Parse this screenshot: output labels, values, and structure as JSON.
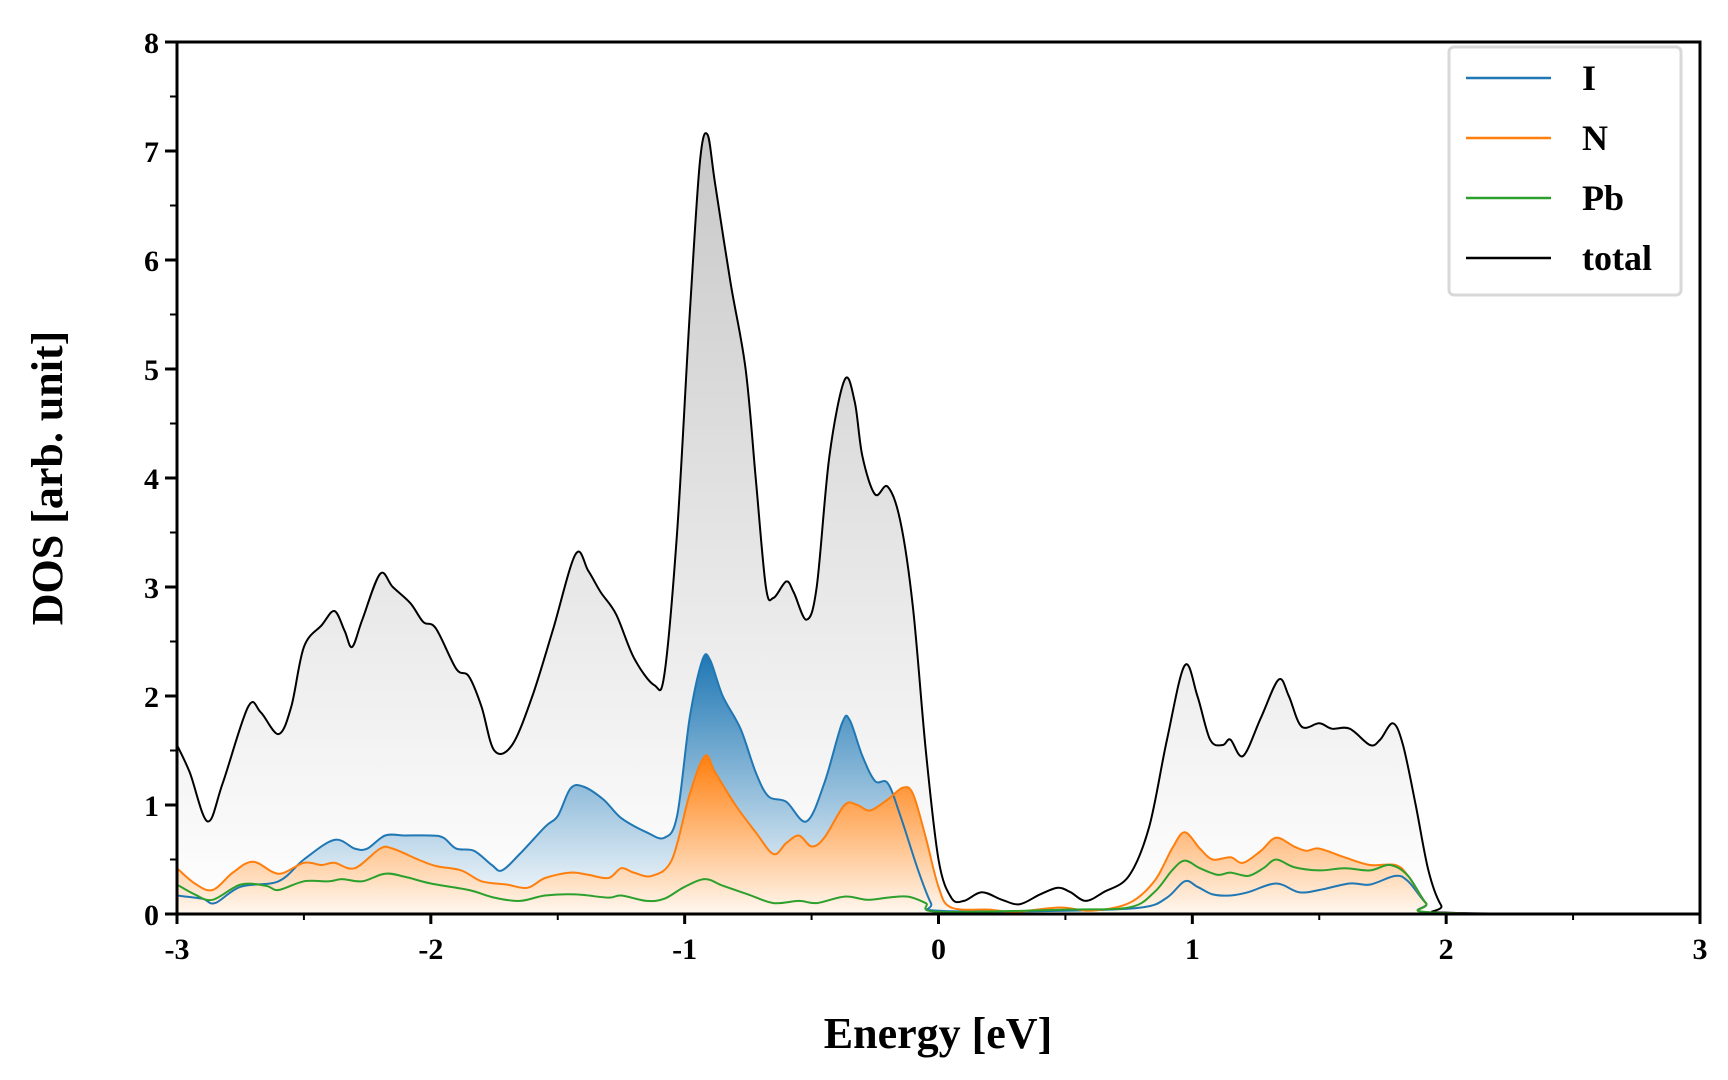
{
  "chart_data": {
    "type": "area",
    "title": "",
    "xlabel": "Energy [eV]",
    "ylabel": "DOS [arb. unit]",
    "xlim": [
      -3,
      3
    ],
    "ylim": [
      0,
      8
    ],
    "xticks": [
      "-3",
      "-2",
      "-1",
      "0",
      "1",
      "2",
      "3"
    ],
    "yticks": [
      "0",
      "1",
      "2",
      "3",
      "4",
      "5",
      "6",
      "7",
      "8"
    ],
    "grid": false,
    "legend_position": "top-right",
    "series": [
      {
        "name": "I",
        "color": "#1f77b4",
        "filled": true,
        "points": [
          [
            -3,
            0.17
          ],
          [
            -2.9,
            0.14
          ],
          [
            -2.85,
            0.1
          ],
          [
            -2.75,
            0.25
          ],
          [
            -2.6,
            0.3
          ],
          [
            -2.5,
            0.5
          ],
          [
            -2.38,
            0.68
          ],
          [
            -2.3,
            0.6
          ],
          [
            -2.25,
            0.6
          ],
          [
            -2.18,
            0.72
          ],
          [
            -2.1,
            0.72
          ],
          [
            -2,
            0.72
          ],
          [
            -1.95,
            0.7
          ],
          [
            -1.9,
            0.6
          ],
          [
            -1.83,
            0.58
          ],
          [
            -1.76,
            0.45
          ],
          [
            -1.72,
            0.4
          ],
          [
            -1.65,
            0.55
          ],
          [
            -1.55,
            0.8
          ],
          [
            -1.5,
            0.9
          ],
          [
            -1.45,
            1.15
          ],
          [
            -1.4,
            1.17
          ],
          [
            -1.32,
            1.05
          ],
          [
            -1.25,
            0.88
          ],
          [
            -1.15,
            0.75
          ],
          [
            -1.08,
            0.7
          ],
          [
            -1.03,
            0.9
          ],
          [
            -0.98,
            1.8
          ],
          [
            -0.93,
            2.33
          ],
          [
            -0.9,
            2.33
          ],
          [
            -0.85,
            2.0
          ],
          [
            -0.78,
            1.7
          ],
          [
            -0.72,
            1.3
          ],
          [
            -0.67,
            1.08
          ],
          [
            -0.6,
            1.03
          ],
          [
            -0.52,
            0.85
          ],
          [
            -0.45,
            1.2
          ],
          [
            -0.38,
            1.75
          ],
          [
            -0.35,
            1.78
          ],
          [
            -0.3,
            1.45
          ],
          [
            -0.25,
            1.22
          ],
          [
            -0.2,
            1.2
          ],
          [
            -0.15,
            0.9
          ],
          [
            -0.08,
            0.4
          ],
          [
            -0.03,
            0.1
          ],
          [
            0,
            0.03
          ],
          [
            0.5,
            0.03
          ],
          [
            0.8,
            0.06
          ],
          [
            0.9,
            0.15
          ],
          [
            0.97,
            0.3
          ],
          [
            1.02,
            0.25
          ],
          [
            1.08,
            0.18
          ],
          [
            1.15,
            0.17
          ],
          [
            1.22,
            0.2
          ],
          [
            1.33,
            0.28
          ],
          [
            1.42,
            0.2
          ],
          [
            1.5,
            0.22
          ],
          [
            1.62,
            0.28
          ],
          [
            1.7,
            0.27
          ],
          [
            1.8,
            0.35
          ],
          [
            1.85,
            0.3
          ],
          [
            1.92,
            0.1
          ],
          [
            1.98,
            0.01
          ],
          [
            3,
            0
          ]
        ]
      },
      {
        "name": "N",
        "color": "#ff7f0e",
        "filled": true,
        "points": [
          [
            -3,
            0.42
          ],
          [
            -2.93,
            0.28
          ],
          [
            -2.86,
            0.22
          ],
          [
            -2.78,
            0.38
          ],
          [
            -2.7,
            0.48
          ],
          [
            -2.6,
            0.37
          ],
          [
            -2.5,
            0.47
          ],
          [
            -2.43,
            0.45
          ],
          [
            -2.38,
            0.47
          ],
          [
            -2.3,
            0.42
          ],
          [
            -2.2,
            0.6
          ],
          [
            -2.15,
            0.6
          ],
          [
            -2.05,
            0.5
          ],
          [
            -1.98,
            0.44
          ],
          [
            -1.88,
            0.4
          ],
          [
            -1.8,
            0.3
          ],
          [
            -1.7,
            0.27
          ],
          [
            -1.62,
            0.24
          ],
          [
            -1.55,
            0.33
          ],
          [
            -1.45,
            0.38
          ],
          [
            -1.38,
            0.36
          ],
          [
            -1.3,
            0.33
          ],
          [
            -1.25,
            0.42
          ],
          [
            -1.2,
            0.38
          ],
          [
            -1.13,
            0.35
          ],
          [
            -1.05,
            0.5
          ],
          [
            -0.98,
            1.1
          ],
          [
            -0.92,
            1.45
          ],
          [
            -0.88,
            1.3
          ],
          [
            -0.8,
            1.0
          ],
          [
            -0.72,
            0.75
          ],
          [
            -0.65,
            0.55
          ],
          [
            -0.6,
            0.65
          ],
          [
            -0.55,
            0.72
          ],
          [
            -0.5,
            0.62
          ],
          [
            -0.45,
            0.7
          ],
          [
            -0.37,
            1.0
          ],
          [
            -0.32,
            1.0
          ],
          [
            -0.27,
            0.95
          ],
          [
            -0.2,
            1.05
          ],
          [
            -0.14,
            1.16
          ],
          [
            -0.1,
            1.1
          ],
          [
            -0.05,
            0.7
          ],
          [
            0,
            0.25
          ],
          [
            0.05,
            0.06
          ],
          [
            0.2,
            0.04
          ],
          [
            0.3,
            0.02
          ],
          [
            0.48,
            0.06
          ],
          [
            0.6,
            0.03
          ],
          [
            0.75,
            0.1
          ],
          [
            0.85,
            0.3
          ],
          [
            0.92,
            0.6
          ],
          [
            0.97,
            0.75
          ],
          [
            1.03,
            0.6
          ],
          [
            1.08,
            0.5
          ],
          [
            1.15,
            0.52
          ],
          [
            1.2,
            0.47
          ],
          [
            1.27,
            0.58
          ],
          [
            1.33,
            0.7
          ],
          [
            1.4,
            0.62
          ],
          [
            1.45,
            0.58
          ],
          [
            1.5,
            0.6
          ],
          [
            1.6,
            0.52
          ],
          [
            1.7,
            0.45
          ],
          [
            1.8,
            0.45
          ],
          [
            1.85,
            0.35
          ],
          [
            1.92,
            0.1
          ],
          [
            1.98,
            0.01
          ],
          [
            3,
            0
          ]
        ]
      },
      {
        "name": "Pb",
        "color": "#2ca02c",
        "filled": false,
        "points": [
          [
            -3,
            0.27
          ],
          [
            -2.93,
            0.18
          ],
          [
            -2.86,
            0.13
          ],
          [
            -2.75,
            0.27
          ],
          [
            -2.65,
            0.26
          ],
          [
            -2.6,
            0.22
          ],
          [
            -2.5,
            0.3
          ],
          [
            -2.4,
            0.3
          ],
          [
            -2.35,
            0.32
          ],
          [
            -2.27,
            0.3
          ],
          [
            -2.18,
            0.37
          ],
          [
            -2.1,
            0.34
          ],
          [
            -2,
            0.28
          ],
          [
            -1.85,
            0.22
          ],
          [
            -1.75,
            0.15
          ],
          [
            -1.65,
            0.12
          ],
          [
            -1.55,
            0.17
          ],
          [
            -1.43,
            0.18
          ],
          [
            -1.3,
            0.15
          ],
          [
            -1.25,
            0.17
          ],
          [
            -1.15,
            0.12
          ],
          [
            -1.08,
            0.14
          ],
          [
            -1.0,
            0.25
          ],
          [
            -0.92,
            0.32
          ],
          [
            -0.85,
            0.26
          ],
          [
            -0.75,
            0.18
          ],
          [
            -0.65,
            0.1
          ],
          [
            -0.55,
            0.12
          ],
          [
            -0.48,
            0.1
          ],
          [
            -0.37,
            0.16
          ],
          [
            -0.28,
            0.13
          ],
          [
            -0.2,
            0.15
          ],
          [
            -0.12,
            0.16
          ],
          [
            -0.05,
            0.1
          ],
          [
            0,
            0.02
          ],
          [
            0.5,
            0.04
          ],
          [
            0.75,
            0.06
          ],
          [
            0.85,
            0.2
          ],
          [
            0.92,
            0.4
          ],
          [
            0.97,
            0.49
          ],
          [
            1.03,
            0.42
          ],
          [
            1.1,
            0.36
          ],
          [
            1.15,
            0.38
          ],
          [
            1.22,
            0.35
          ],
          [
            1.28,
            0.42
          ],
          [
            1.33,
            0.5
          ],
          [
            1.4,
            0.43
          ],
          [
            1.5,
            0.4
          ],
          [
            1.6,
            0.42
          ],
          [
            1.7,
            0.4
          ],
          [
            1.78,
            0.45
          ],
          [
            1.85,
            0.35
          ],
          [
            1.92,
            0.1
          ],
          [
            1.98,
            0.01
          ],
          [
            3,
            0
          ]
        ]
      },
      {
        "name": "total",
        "color": "#000000",
        "filled": true,
        "points": [
          [
            -3,
            1.55
          ],
          [
            -2.95,
            1.3
          ],
          [
            -2.88,
            0.85
          ],
          [
            -2.82,
            1.2
          ],
          [
            -2.72,
            1.9
          ],
          [
            -2.67,
            1.85
          ],
          [
            -2.6,
            1.65
          ],
          [
            -2.55,
            1.9
          ],
          [
            -2.5,
            2.45
          ],
          [
            -2.43,
            2.65
          ],
          [
            -2.38,
            2.78
          ],
          [
            -2.34,
            2.6
          ],
          [
            -2.31,
            2.45
          ],
          [
            -2.27,
            2.7
          ],
          [
            -2.2,
            3.12
          ],
          [
            -2.15,
            3.0
          ],
          [
            -2.08,
            2.85
          ],
          [
            -2.03,
            2.68
          ],
          [
            -1.98,
            2.62
          ],
          [
            -1.9,
            2.25
          ],
          [
            -1.85,
            2.18
          ],
          [
            -1.8,
            1.9
          ],
          [
            -1.75,
            1.5
          ],
          [
            -1.68,
            1.55
          ],
          [
            -1.6,
            2.0
          ],
          [
            -1.52,
            2.6
          ],
          [
            -1.43,
            3.3
          ],
          [
            -1.38,
            3.15
          ],
          [
            -1.33,
            2.95
          ],
          [
            -1.27,
            2.75
          ],
          [
            -1.2,
            2.35
          ],
          [
            -1.12,
            2.1
          ],
          [
            -1.08,
            2.2
          ],
          [
            -1.03,
            3.5
          ],
          [
            -0.98,
            5.5
          ],
          [
            -0.94,
            6.9
          ],
          [
            -0.91,
            7.15
          ],
          [
            -0.88,
            6.7
          ],
          [
            -0.82,
            5.8
          ],
          [
            -0.76,
            5.0
          ],
          [
            -0.72,
            4.0
          ],
          [
            -0.68,
            3.0
          ],
          [
            -0.65,
            2.9
          ],
          [
            -0.6,
            3.05
          ],
          [
            -0.57,
            2.95
          ],
          [
            -0.52,
            2.7
          ],
          [
            -0.48,
            3.0
          ],
          [
            -0.43,
            4.2
          ],
          [
            -0.37,
            4.9
          ],
          [
            -0.33,
            4.7
          ],
          [
            -0.3,
            4.2
          ],
          [
            -0.25,
            3.85
          ],
          [
            -0.2,
            3.92
          ],
          [
            -0.15,
            3.6
          ],
          [
            -0.1,
            2.8
          ],
          [
            -0.05,
            1.5
          ],
          [
            0,
            0.5
          ],
          [
            0.05,
            0.15
          ],
          [
            0.1,
            0.12
          ],
          [
            0.17,
            0.2
          ],
          [
            0.25,
            0.13
          ],
          [
            0.32,
            0.09
          ],
          [
            0.4,
            0.18
          ],
          [
            0.47,
            0.24
          ],
          [
            0.52,
            0.2
          ],
          [
            0.58,
            0.12
          ],
          [
            0.65,
            0.2
          ],
          [
            0.75,
            0.35
          ],
          [
            0.83,
            0.8
          ],
          [
            0.9,
            1.6
          ],
          [
            0.97,
            2.28
          ],
          [
            1.02,
            2.0
          ],
          [
            1.07,
            1.6
          ],
          [
            1.12,
            1.55
          ],
          [
            1.15,
            1.6
          ],
          [
            1.2,
            1.45
          ],
          [
            1.27,
            1.8
          ],
          [
            1.34,
            2.15
          ],
          [
            1.38,
            2.0
          ],
          [
            1.43,
            1.72
          ],
          [
            1.5,
            1.75
          ],
          [
            1.55,
            1.7
          ],
          [
            1.62,
            1.7
          ],
          [
            1.7,
            1.55
          ],
          [
            1.74,
            1.6
          ],
          [
            1.79,
            1.75
          ],
          [
            1.83,
            1.55
          ],
          [
            1.88,
            1.0
          ],
          [
            1.93,
            0.4
          ],
          [
            1.98,
            0.08
          ],
          [
            2.03,
            0.01
          ],
          [
            3,
            0
          ]
        ]
      }
    ]
  }
}
